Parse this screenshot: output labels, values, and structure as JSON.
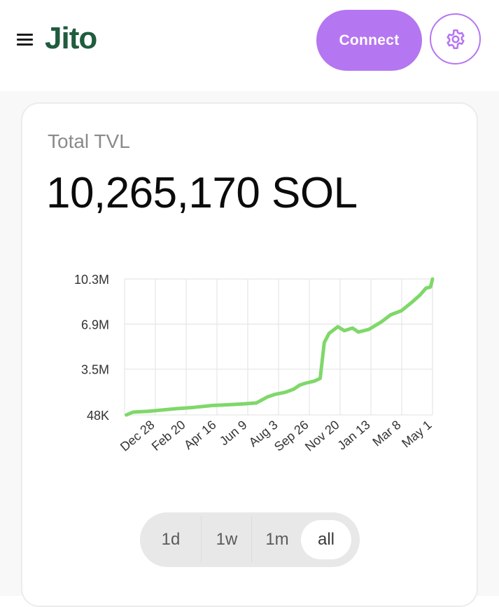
{
  "header": {
    "logo_text": "Jito",
    "connect_label": "Connect",
    "menu_icon": "hamburger-menu-icon",
    "settings_icon": "gear-icon"
  },
  "colors": {
    "accent": "#b576f1",
    "logo": "#1f5c3e",
    "line": "#7fd86a",
    "grid": "#e6e6e6"
  },
  "card": {
    "title": "Total TVL",
    "value": "10,265,170 SOL"
  },
  "range": {
    "options": [
      "1d",
      "1w",
      "1m",
      "all"
    ],
    "selected": "all"
  },
  "chart_data": {
    "type": "line",
    "title": "",
    "xlabel": "",
    "ylabel": "",
    "y_ticks": [
      {
        "label": "48K",
        "value": 48000
      },
      {
        "label": "3.5M",
        "value": 3500000
      },
      {
        "label": "6.9M",
        "value": 6900000
      },
      {
        "label": "10.3M",
        "value": 10300000
      }
    ],
    "x_ticks": [
      "Dec 28",
      "Feb 20",
      "Apr 16",
      "Jun 9",
      "Aug 3",
      "Sep 26",
      "Nov 20",
      "Jan 13",
      "Mar 8",
      "May 1"
    ],
    "ylim": [
      48000,
      10300000
    ],
    "xlim": [
      "Nov 2022",
      "May 1"
    ],
    "grid": true,
    "legend": "none",
    "series": [
      {
        "values": [
          [
            "Nov 20",
            48000
          ],
          [
            "Dec 1",
            260000
          ],
          [
            "Dec 28",
            330000
          ],
          [
            "Feb 20",
            540000
          ],
          [
            "Mar 15",
            620000
          ],
          [
            "Apr 16",
            760000
          ],
          [
            "May 15",
            820000
          ],
          [
            "Jun 9",
            880000
          ],
          [
            "Jul 1",
            950000
          ],
          [
            "Jul 20",
            1400000
          ],
          [
            "Aug 3",
            1600000
          ],
          [
            "Aug 20",
            1750000
          ],
          [
            "Sep 5",
            2000000
          ],
          [
            "Sep 15",
            2300000
          ],
          [
            "Sep 26",
            2450000
          ],
          [
            "Oct 10",
            2600000
          ],
          [
            "Oct 20",
            2800000
          ],
          [
            "Oct 27",
            5500000
          ],
          [
            "Nov 5",
            6200000
          ],
          [
            "Nov 20",
            6700000
          ],
          [
            "Dec 1",
            6400000
          ],
          [
            "Dec 15",
            6600000
          ],
          [
            "Dec 25",
            6300000
          ],
          [
            "Jan 13",
            6500000
          ],
          [
            "Feb 5",
            7100000
          ],
          [
            "Feb 20",
            7600000
          ],
          [
            "Mar 8",
            7900000
          ],
          [
            "Mar 25",
            8500000
          ],
          [
            "Apr 10",
            9100000
          ],
          [
            "Apr 20",
            9600000
          ],
          [
            "Apr 28",
            9700000
          ],
          [
            "May 1",
            10300000
          ]
        ]
      }
    ]
  }
}
